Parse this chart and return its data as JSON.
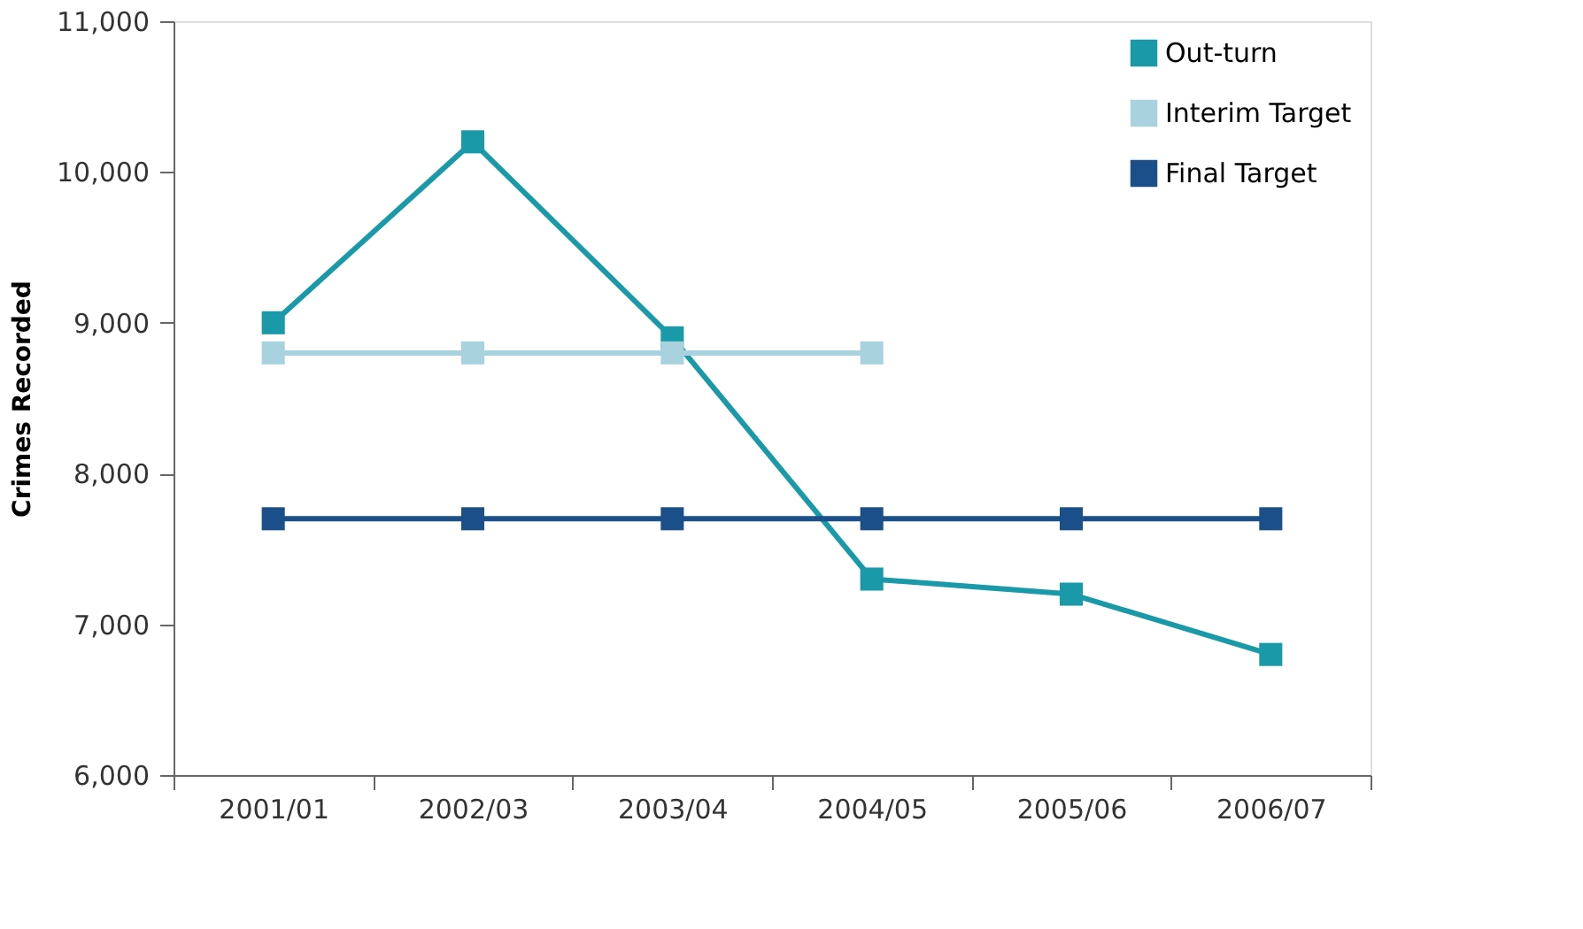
{
  "chart_data": {
    "type": "line",
    "ylabel": "Crimes Recorded",
    "categories": [
      "2001/01",
      "2002/03",
      "2003/04",
      "2004/05",
      "2005/06",
      "2006/07"
    ],
    "series": [
      {
        "name": "Out-turn",
        "color": "#1a9aa8",
        "values": [
          9000,
          10200,
          8900,
          7300,
          7200,
          6800
        ]
      },
      {
        "name": "Interim Target",
        "color": "#a8d3de",
        "values": [
          8800,
          8800,
          8800,
          8800,
          null,
          null
        ]
      },
      {
        "name": "Final Target",
        "color": "#1b4f8a",
        "values": [
          7700,
          7700,
          7700,
          7700,
          7700,
          7700
        ]
      }
    ],
    "ylim": [
      6000,
      11000
    ],
    "yticks": [
      {
        "value": 6000,
        "label": "6,000"
      },
      {
        "value": 7000,
        "label": "7,000"
      },
      {
        "value": 8000,
        "label": "8,000"
      },
      {
        "value": 9000,
        "label": "9,000"
      },
      {
        "value": 10000,
        "label": "10,000"
      },
      {
        "value": 11000,
        "label": "11,000"
      }
    ],
    "grid": false,
    "legend": "top right",
    "marker": "square",
    "line_style": "solid"
  }
}
